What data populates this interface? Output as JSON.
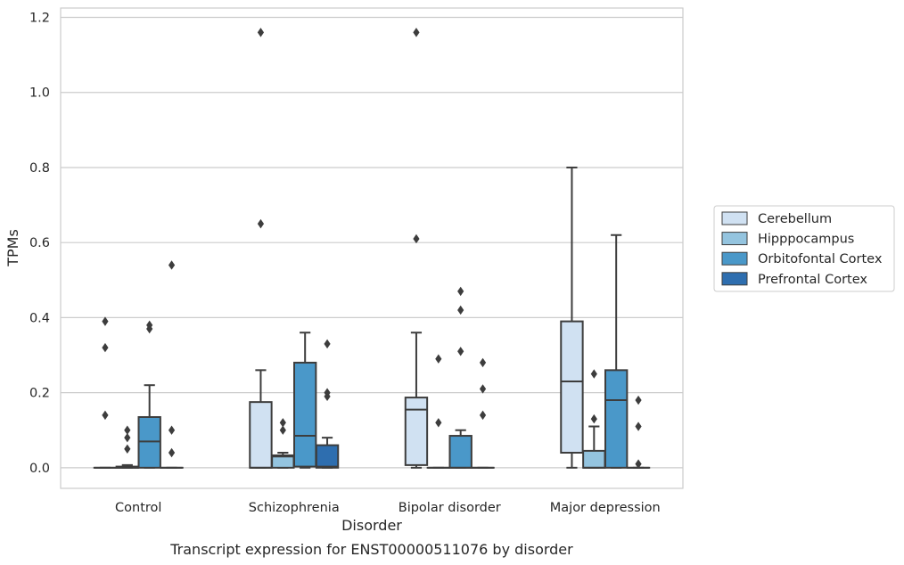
{
  "chart_data": {
    "type": "boxplot",
    "xlabel": "Disorder",
    "ylabel": "TPMs",
    "caption": "Transcript expression for ENST00000511076 by disorder",
    "ylim": [
      -0.055,
      1.225
    ],
    "yticks": [
      "0.0",
      "0.2",
      "0.4",
      "0.6",
      "0.8",
      "1.0",
      "1.2"
    ],
    "ytick_values": [
      0.0,
      0.2,
      0.4,
      0.6,
      0.8,
      1.0,
      1.2
    ],
    "grid": "horizontal",
    "legend_position": "right",
    "categories": [
      "Control",
      "Schizophrenia",
      "Bipolar disorder",
      "Major depression"
    ],
    "series": [
      {
        "name": "Cerebellum",
        "color": "#d0e1f2",
        "boxes": [
          {
            "min": 0.0,
            "q1": 0.0,
            "median": 0.0,
            "q3": 0.0,
            "max": 0.0,
            "outliers": [
              0.39,
              0.32,
              0.14
            ]
          },
          {
            "min": 0.0,
            "q1": 0.0,
            "median": 0.0,
            "q3": 0.175,
            "max": 0.26,
            "outliers": [
              1.16,
              0.65
            ]
          },
          {
            "min": 0.0,
            "q1": 0.007,
            "median": 0.155,
            "q3": 0.187,
            "max": 0.36,
            "outliers": [
              1.16,
              0.61
            ]
          },
          {
            "min": 0.0,
            "q1": 0.04,
            "median": 0.23,
            "q3": 0.39,
            "max": 0.8,
            "outliers": []
          }
        ]
      },
      {
        "name": "Hipppocampus",
        "color": "#94c4df",
        "boxes": [
          {
            "min": 0.0,
            "q1": 0.0,
            "median": 0.0,
            "q3": 0.003,
            "max": 0.007,
            "outliers": [
              0.1,
              0.08,
              0.05
            ]
          },
          {
            "min": 0.0,
            "q1": 0.0,
            "median": 0.03,
            "q3": 0.033,
            "max": 0.04,
            "outliers": [
              0.12,
              0.1
            ]
          },
          {
            "min": 0.0,
            "q1": 0.0,
            "median": 0.0,
            "q3": 0.0,
            "max": 0.0,
            "outliers": [
              0.29,
              0.12
            ]
          },
          {
            "min": 0.0,
            "q1": 0.0,
            "median": 0.0,
            "q3": 0.045,
            "max": 0.11,
            "outliers": [
              0.25,
              0.13
            ]
          }
        ]
      },
      {
        "name": "Orbitofontal Cortex",
        "color": "#4a98c9",
        "boxes": [
          {
            "min": 0.0,
            "q1": 0.0,
            "median": 0.07,
            "q3": 0.135,
            "max": 0.22,
            "outliers": [
              0.38,
              0.37
            ]
          },
          {
            "min": 0.0,
            "q1": 0.003,
            "median": 0.085,
            "q3": 0.28,
            "max": 0.36,
            "outliers": []
          },
          {
            "min": 0.0,
            "q1": 0.0,
            "median": 0.0,
            "q3": 0.085,
            "max": 0.1,
            "outliers": [
              0.47,
              0.42,
              0.31
            ]
          },
          {
            "min": 0.0,
            "q1": 0.0,
            "median": 0.18,
            "q3": 0.26,
            "max": 0.62,
            "outliers": []
          }
        ]
      },
      {
        "name": "Prefrontal Cortex",
        "color": "#2e6eaf",
        "boxes": [
          {
            "min": 0.0,
            "q1": 0.0,
            "median": 0.0,
            "q3": 0.0,
            "max": 0.0,
            "outliers": [
              0.54,
              0.1,
              0.04
            ]
          },
          {
            "min": 0.0,
            "q1": 0.0,
            "median": 0.003,
            "q3": 0.06,
            "max": 0.08,
            "outliers": [
              0.33,
              0.2,
              0.19
            ]
          },
          {
            "min": 0.0,
            "q1": 0.0,
            "median": 0.0,
            "q3": 0.0,
            "max": 0.0,
            "outliers": [
              0.28,
              0.21,
              0.14
            ]
          },
          {
            "min": 0.0,
            "q1": 0.0,
            "median": 0.0,
            "q3": 0.0,
            "max": 0.0,
            "outliers": [
              0.18,
              0.11,
              0.01
            ]
          }
        ]
      }
    ]
  }
}
